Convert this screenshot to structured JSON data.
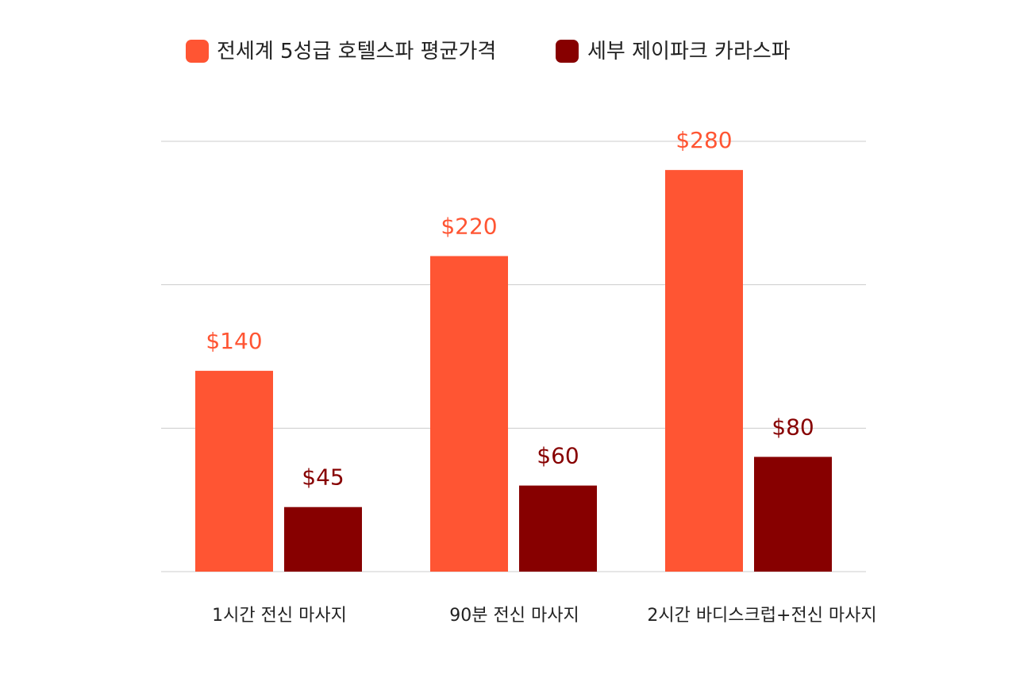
{
  "chart_data": {
    "type": "bar",
    "title": "",
    "xlabel": "",
    "ylabel": "",
    "ylim": [
      0,
      300
    ],
    "grid": true,
    "legend_position": "top-center",
    "categories": [
      "1시간 전신 마사지",
      "90분 전신 마사지",
      "2시간 바디스크럽+전신 마사지"
    ],
    "series": [
      {
        "name": "전세계 5성급 호텔스파 평균가격",
        "color": "#FF5533",
        "values": [
          140,
          220,
          280
        ],
        "labels": [
          "$140",
          "$220",
          "$280"
        ]
      },
      {
        "name": "세부 제이파크 카라스파",
        "color": "#870000",
        "values": [
          45,
          60,
          80
        ],
        "labels": [
          "$45",
          "$60",
          "$80"
        ]
      }
    ],
    "gridline_color": "#cccccc"
  }
}
